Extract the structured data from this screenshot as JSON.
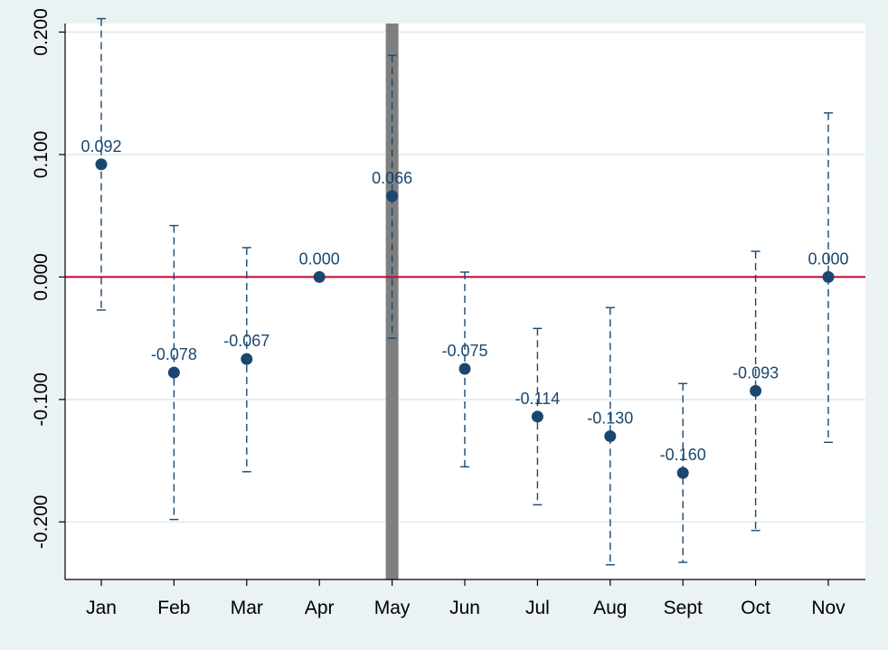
{
  "chart_data": {
    "type": "scatter",
    "title": "",
    "xlabel": "",
    "ylabel": "",
    "categories": [
      "Jan",
      "Feb",
      "Mar",
      "Apr",
      "May",
      "Jun",
      "Jul",
      "Aug",
      "Sept",
      "Oct",
      "Nov"
    ],
    "series": [
      {
        "values": [
          0.092,
          -0.078,
          -0.067,
          0.0,
          0.066,
          -0.075,
          -0.114,
          -0.13,
          -0.16,
          -0.093,
          0.0
        ],
        "value_labels": [
          "0.092",
          "-0.078",
          "-0.067",
          "0.000",
          "0.066",
          "-0.075",
          "-0.114",
          "-0.130",
          "-0.160",
          "-0.093",
          "0.000"
        ],
        "ci_low": [
          -0.027,
          -0.198,
          -0.159,
          null,
          -0.05,
          -0.155,
          -0.186,
          -0.235,
          -0.233,
          -0.207,
          -0.135
        ],
        "ci_high": [
          0.211,
          0.042,
          0.024,
          null,
          0.181,
          0.004,
          -0.042,
          -0.025,
          -0.087,
          0.021,
          0.134
        ]
      }
    ],
    "ylim": [
      -0.247,
      0.207
    ],
    "yticks": [
      0.2,
      0.1,
      0.0,
      -0.1,
      -0.2
    ],
    "ytick_labels": [
      "0.200",
      "0.100",
      "0.000",
      "-0.100",
      "-0.200"
    ],
    "reference_line_y": 0.0,
    "highlight_category": "May",
    "grid": true,
    "colors": {
      "background": "#eaf2f3",
      "plot_area": "#ffffff",
      "grid": "#e6eeef",
      "marker": "#1a476f",
      "label": "#1a476f",
      "errorbar": "#1a476f",
      "reference_line": "#c10534",
      "highlight_band": "#7f7f7f",
      "axis": "#000000"
    }
  }
}
